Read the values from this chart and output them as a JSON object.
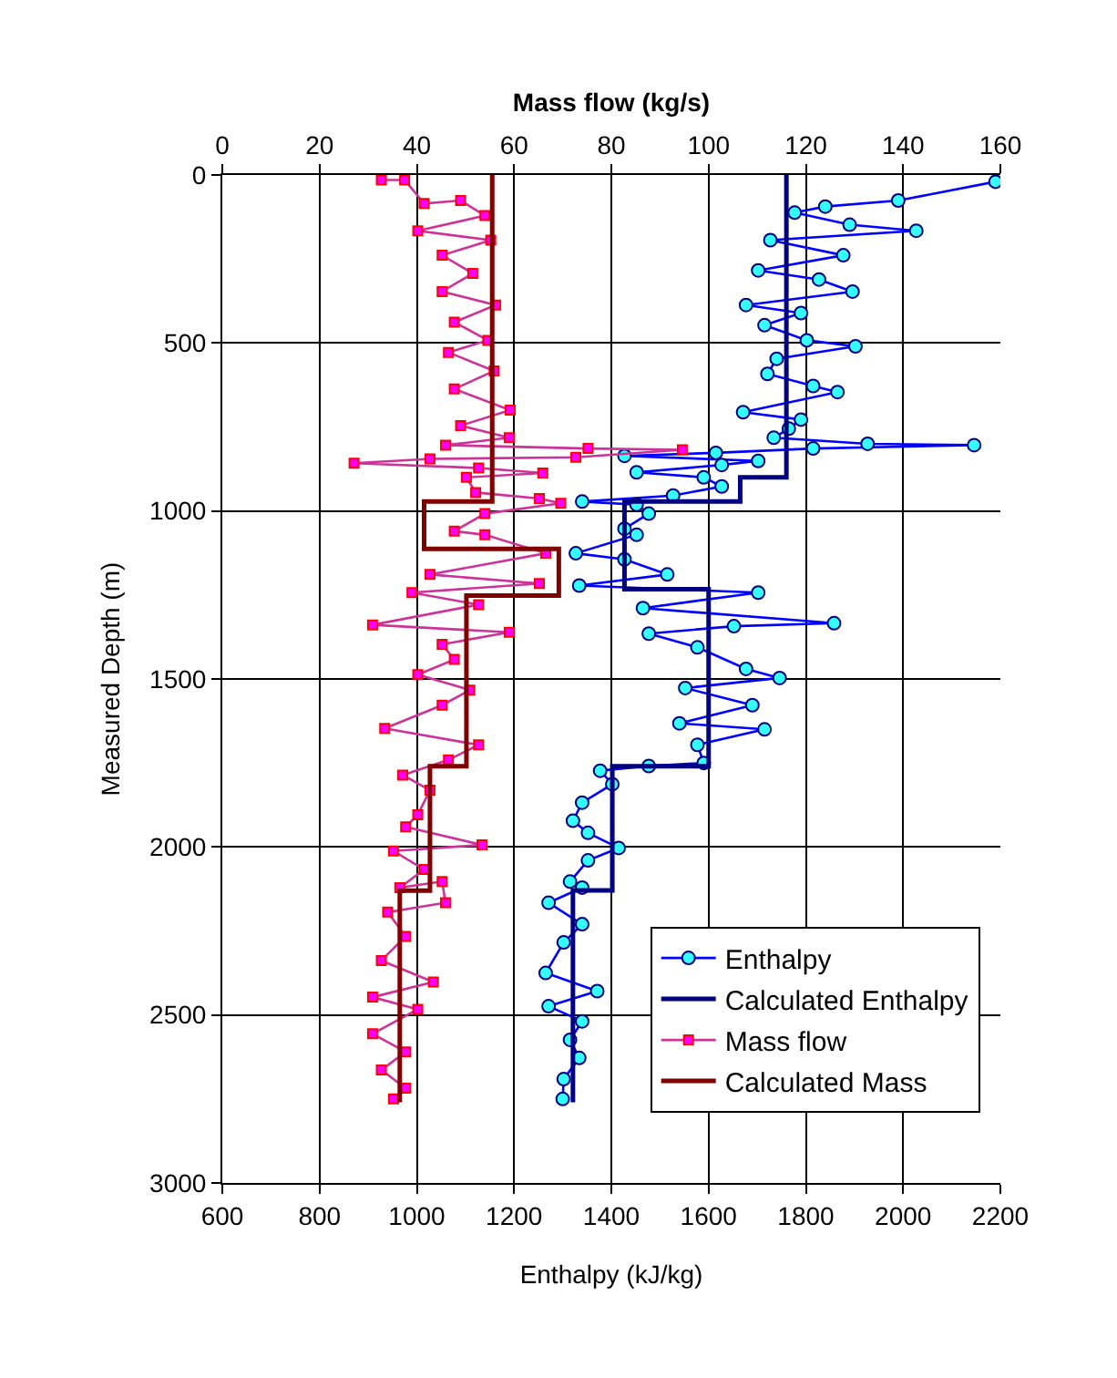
{
  "chart_data": {
    "type": "line",
    "xlabel": "Enthalpy (kJ/kg)",
    "x2label": "Mass flow (kg/s)",
    "ylabel": "Measured Depth (m)",
    "xlim": [
      600,
      2200
    ],
    "xticks": [
      600,
      800,
      1000,
      1200,
      1400,
      1600,
      1800,
      2000,
      2200
    ],
    "x2lim": [
      0,
      160
    ],
    "x2ticks": [
      0,
      20,
      40,
      60,
      80,
      100,
      120,
      140,
      160
    ],
    "ylim": [
      3000,
      0
    ],
    "yticks": [
      0,
      500,
      1000,
      1500,
      2000,
      2500,
      3000
    ],
    "grid": true,
    "legend": "bottom right",
    "series": [
      {
        "name": "Enthalpy",
        "color": "#0000ff",
        "marker": "circle",
        "x": [
          2190,
          1990,
          1840,
          1777,
          1890,
          2027,
          1727,
          1877,
          1702,
          1827,
          1896,
          1677,
          1790,
          1715,
          1802,
          1902,
          1740,
          1721,
          1815,
          1865,
          1671,
          1790,
          1765,
          1734,
          1927,
          2146,
          1815,
          1615,
          1427,
          1702,
          1627,
          1452,
          1590,
          1627,
          1527,
          1340,
          1452,
          1477,
          1427,
          1452,
          1327,
          1427,
          1515,
          1334,
          1702,
          1465,
          1858,
          1652,
          1477,
          1577,
          1677,
          1746,
          1552,
          1690,
          1540,
          1715,
          1577,
          1590,
          1477,
          1377,
          1402,
          1340,
          1321,
          1352,
          1415,
          1352,
          1315,
          1340,
          1271,
          1340,
          1302,
          1265,
          1371,
          1271,
          1340,
          1315,
          1334,
          1302,
          1300
        ],
        "values": [
          20,
          76,
          94,
          112,
          148,
          166,
          194,
          239,
          284,
          311,
          347,
          387,
          411,
          447,
          492,
          510,
          547,
          592,
          628,
          646,
          706,
          728,
          755,
          782,
          800,
          804,
          814,
          827,
          836,
          851,
          863,
          885,
          900,
          927,
          954,
          972,
          981,
          1008,
          1053,
          1071,
          1126,
          1144,
          1189,
          1222,
          1243,
          1289,
          1334,
          1343,
          1365,
          1406,
          1470,
          1497,
          1527,
          1578,
          1632,
          1650,
          1696,
          1750,
          1759,
          1773,
          1813,
          1868,
          1922,
          1958,
          2003,
          2040,
          2103,
          2121,
          2166,
          2230,
          2284,
          2375,
          2429,
          2474,
          2519,
          2574,
          2628,
          2691,
          2750
        ]
      },
      {
        "name": "Calculated Enthalpy",
        "color": "#000080",
        "marker": "none",
        "x": [
          1760,
          1760,
          1665,
          1665,
          1427,
          1427,
          1600,
          1600,
          1402,
          1402,
          1321,
          1321
        ],
        "values": [
          0,
          900,
          900,
          972,
          972,
          1233,
          1233,
          1760,
          1760,
          2129,
          2129,
          2760
        ]
      },
      {
        "name": "Mass flow",
        "color": "#cc3399",
        "marker": "square",
        "axis": "x2",
        "x": [
          32.7,
          37.5,
          41.5,
          49,
          54,
          40.2,
          55.2,
          45.2,
          51.5,
          45.2,
          56.2,
          47.7,
          54.6,
          46.5,
          55.9,
          47.7,
          59.2,
          49,
          59,
          45.9,
          75.2,
          94.6,
          72.7,
          42.7,
          27.1,
          52.7,
          65.9,
          50.2,
          52.1,
          65.2,
          69.6,
          54,
          47.7,
          54,
          66.5,
          42.7,
          65.2,
          39,
          52.7,
          30.9,
          59,
          45.2,
          47.7,
          40.2,
          50.9,
          45.2,
          33.4,
          52.7,
          46.5,
          37.1,
          42.7,
          40.2,
          37.7,
          53.4,
          35.2,
          41.5,
          36.5,
          45.2,
          45.9,
          34,
          37.7,
          32.7,
          43.4,
          30.9,
          40.2,
          30.9,
          37.7,
          32.7,
          37.7,
          35.2
        ],
        "values": [
          15,
          15,
          85,
          76,
          121,
          166,
          194,
          239,
          293,
          347,
          387,
          438,
          492,
          528,
          583,
          637,
          700,
          746,
          782,
          804,
          814,
          818,
          840,
          845,
          858,
          872,
          887,
          900,
          945,
          963,
          977,
          1008,
          1060,
          1071,
          1126,
          1189,
          1216,
          1243,
          1279,
          1339,
          1361,
          1397,
          1442,
          1487,
          1533,
          1578,
          1647,
          1696,
          1741,
          1786,
          1831,
          1904,
          1940,
          1994,
          2012,
          2067,
          2121,
          2103,
          2166,
          2194,
          2266,
          2338,
          2402,
          2447,
          2483,
          2556,
          2610,
          2664,
          2718,
          2750
        ]
      },
      {
        "name": "Calculated Mass",
        "color": "#800000",
        "marker": "none",
        "axis": "x2",
        "x": [
          55.5,
          55.5,
          41.5,
          41.5,
          69.2,
          69.2,
          50.2,
          50.2,
          42.7,
          42.7,
          36.5,
          36.5
        ],
        "values": [
          0,
          972,
          972,
          1113,
          1113,
          1252,
          1252,
          1760,
          1760,
          2130,
          2130,
          2760
        ]
      }
    ]
  }
}
